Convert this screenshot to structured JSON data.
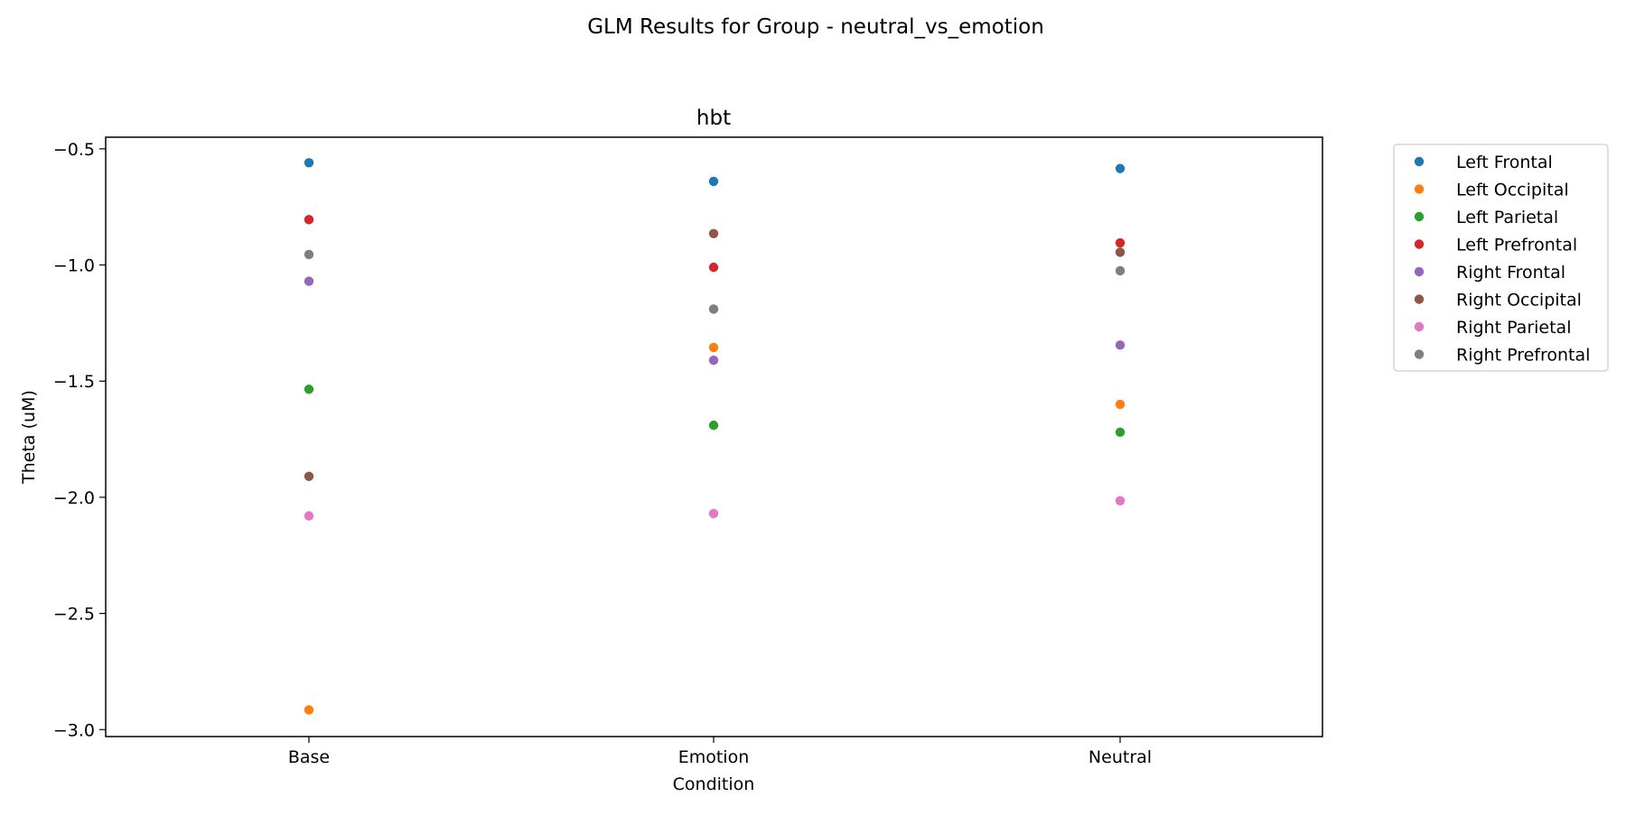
{
  "figure": {
    "suptitle": "GLM Results for Group - neutral_vs_emotion"
  },
  "chart_data": {
    "type": "scatter",
    "title": "hbt",
    "xlabel": "Condition",
    "ylabel": "Theta (uM)",
    "categories": [
      "Base",
      "Emotion",
      "Neutral"
    ],
    "ylim": [
      -3.03,
      -0.45
    ],
    "yticks": [
      -0.5,
      -1.0,
      -1.5,
      -2.0,
      -2.5,
      -3.0
    ],
    "ytick_labels": [
      "−0.5",
      "−1.0",
      "−1.5",
      "−2.0",
      "−2.5",
      "−3.0"
    ],
    "grid": false,
    "legend_position": "outside right",
    "series": [
      {
        "name": "Left Frontal",
        "color": "#1f77b4",
        "values": [
          -0.56,
          -0.64,
          -0.585
        ]
      },
      {
        "name": "Left Occipital",
        "color": "#ff7f0e",
        "values": [
          -2.915,
          -1.355,
          -1.6
        ]
      },
      {
        "name": "Left Parietal",
        "color": "#2ca02c",
        "values": [
          -1.535,
          -1.69,
          -1.72
        ]
      },
      {
        "name": "Left Prefrontal",
        "color": "#d62728",
        "values": [
          -0.805,
          -1.01,
          -0.905
        ]
      },
      {
        "name": "Right Frontal",
        "color": "#9467bd",
        "values": [
          -1.07,
          -1.41,
          -1.345
        ]
      },
      {
        "name": "Right Occipital",
        "color": "#8c564b",
        "values": [
          -1.91,
          -0.865,
          -0.945
        ]
      },
      {
        "name": "Right Parietal",
        "color": "#e377c2",
        "values": [
          -2.08,
          -2.07,
          -2.015
        ]
      },
      {
        "name": "Right Prefrontal",
        "color": "#7f7f7f",
        "values": [
          -0.955,
          -1.19,
          -1.025
        ]
      }
    ]
  }
}
